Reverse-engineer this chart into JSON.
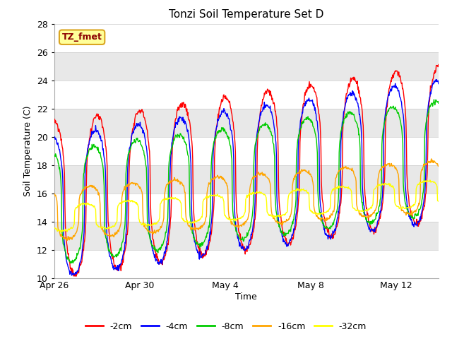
{
  "title": "Tonzi Soil Temperature Set D",
  "xlabel": "Time",
  "ylabel": "Soil Temperature (C)",
  "ylim": [
    10,
    28
  ],
  "annotation_text": "TZ_fmet",
  "annotation_color": "#8B0000",
  "annotation_bg": "#FFFF99",
  "annotation_border": "#DAA520",
  "series": [
    {
      "label": "-2cm",
      "color": "#FF0000"
    },
    {
      "label": "-4cm",
      "color": "#0000FF"
    },
    {
      "label": "-8cm",
      "color": "#00CC00"
    },
    {
      "label": "-16cm",
      "color": "#FFA500"
    },
    {
      "label": "-32cm",
      "color": "#FFFF00"
    }
  ],
  "x_ticks_days": [
    0,
    4,
    8,
    12,
    16
  ],
  "x_tick_labels": [
    "Apr 26",
    "Apr 30",
    "May 4",
    "May 8",
    "May 12"
  ],
  "y_ticks": [
    10,
    12,
    14,
    16,
    18,
    20,
    22,
    24,
    26,
    28
  ],
  "band_colors": [
    "#FFFFFF",
    "#E8E8E8"
  ],
  "plot_bg": "#FFFFFF"
}
